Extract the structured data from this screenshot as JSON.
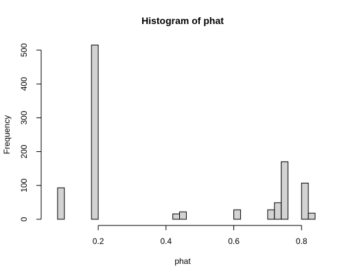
{
  "chart_data": {
    "type": "bar",
    "title": "Histogram of phat",
    "xlabel": "phat",
    "ylabel": "Frequency",
    "xlim": [
      0.06,
      0.84
    ],
    "ylim": [
      0,
      510
    ],
    "bin_width": 0.02,
    "x_ticks": [
      0.2,
      0.4,
      0.6,
      0.8
    ],
    "x_tick_labels": [
      "0.2",
      "0.4",
      "0.6",
      "0.8"
    ],
    "y_ticks": [
      0,
      100,
      200,
      300,
      400,
      500
    ],
    "y_tick_labels": [
      "0",
      "100",
      "200",
      "300",
      "400",
      "500"
    ],
    "bins": [
      {
        "start": 0.08,
        "end": 0.1,
        "value": 93
      },
      {
        "start": 0.18,
        "end": 0.2,
        "value": 515
      },
      {
        "start": 0.42,
        "end": 0.44,
        "value": 16
      },
      {
        "start": 0.44,
        "end": 0.46,
        "value": 22
      },
      {
        "start": 0.6,
        "end": 0.62,
        "value": 28
      },
      {
        "start": 0.7,
        "end": 0.72,
        "value": 28
      },
      {
        "start": 0.72,
        "end": 0.74,
        "value": 49
      },
      {
        "start": 0.74,
        "end": 0.76,
        "value": 170
      },
      {
        "start": 0.8,
        "end": 0.82,
        "value": 107
      },
      {
        "start": 0.82,
        "end": 0.84,
        "value": 18
      }
    ],
    "colors": {
      "bar_fill": "#d3d3d3",
      "bar_stroke": "#000000"
    }
  }
}
